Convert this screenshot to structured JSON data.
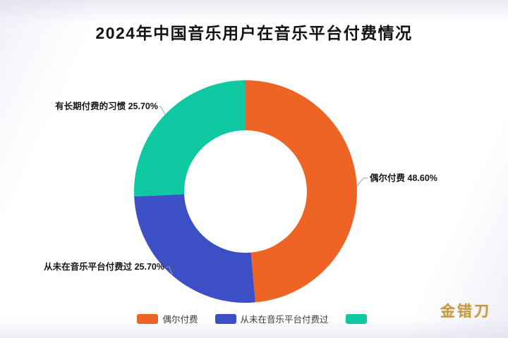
{
  "chart_data": {
    "type": "pie",
    "donut": true,
    "title": "2024年中国音乐用户在音乐平台付费情况",
    "labels": [
      "偶尔付费",
      "从未在音乐平台付费过",
      "有长期付费的习惯"
    ],
    "values": [
      48.6,
      25.7,
      25.7
    ],
    "percent_labels": [
      "48.60%",
      "25.70%",
      "25.70%"
    ],
    "colors": [
      "#ee6424",
      "#3d4fc5",
      "#10c9a2"
    ],
    "legend_position": "bottom",
    "legend_labels": [
      "偶尔付费",
      "从未在音乐平台付费过",
      ""
    ]
  },
  "watermark": {
    "text": "金错刀"
  }
}
